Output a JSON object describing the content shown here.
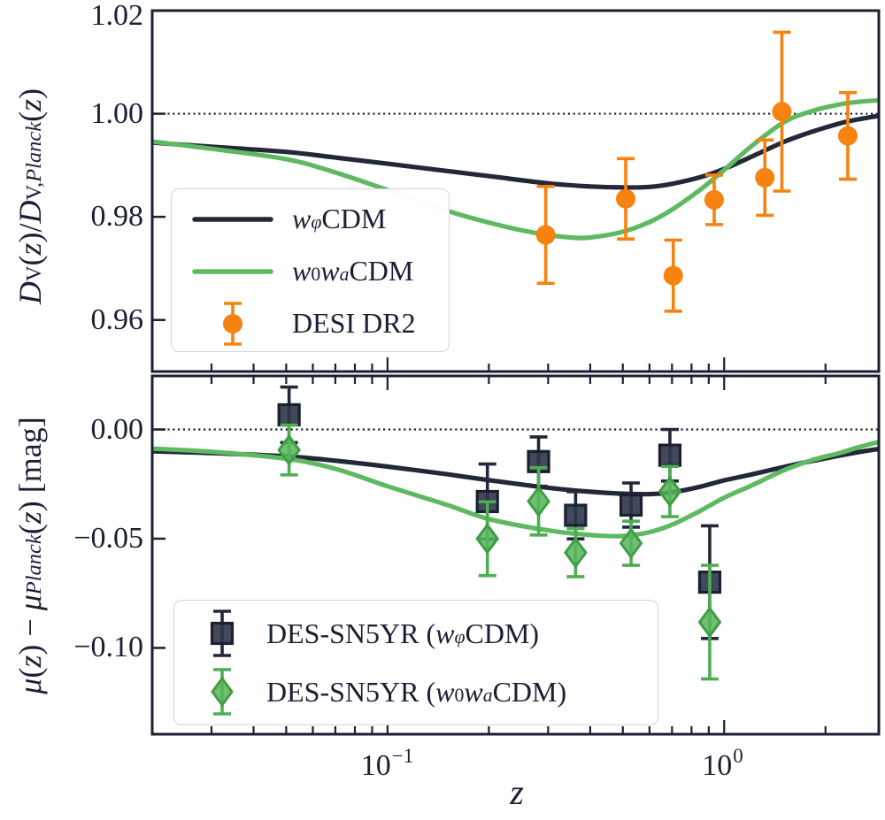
{
  "colors": {
    "navy": "#232839",
    "navy_fill": "#2e3547",
    "navy_edge": "#1a2032",
    "green": "#5fb961",
    "green_fill": "#57b55c",
    "green_edge": "#3f9e45",
    "green_err": "#4fae54",
    "orange": "#f6820f",
    "frame": "#1a2032",
    "text": "#1a1f33",
    "legend_border": "#d4d4d4",
    "reference_dotted": "#1a1f33"
  },
  "labels": {
    "xlabel": "z",
    "yticks_top": {
      "t0": "1.02",
      "t1": "1.00",
      "t2": "0.98",
      "t3": "0.96"
    },
    "yticks_bottom": {
      "t0": "0.00",
      "t1": "−0.05",
      "t2": "−0.10"
    },
    "xtick1": {
      "base": "10",
      "exp": "−1"
    },
    "xtick2": {
      "base": "10",
      "exp": "0"
    },
    "ylabel_top": {
      "p0": "D",
      "p1": "V",
      "p2": "(",
      "p3": "z",
      "p4": ")/",
      "p5": "D",
      "p6": "V,",
      "p7": "Planck",
      "p8": "(",
      "p9": "z",
      "p10": ")"
    },
    "ylabel_bottom": {
      "p0": "μ",
      "p1": "(",
      "p2": "z",
      "p3": ") − ",
      "p4": "μ",
      "p5": "Planck",
      "p6": "(",
      "p7": "z",
      "p8": ") [mag]"
    }
  },
  "legend_top": {
    "e0": {
      "w": "w",
      "sub": "φ",
      "rest": "CDM"
    },
    "e1": {
      "w1": "w",
      "sub1": "0",
      "w2": "w",
      "sub2": "a",
      "rest": "CDM"
    },
    "e2": {
      "label": "DESI DR2"
    }
  },
  "legend_bottom": {
    "e0": {
      "pre": "DES-SN5YR (",
      "w": "w",
      "sub": "φ",
      "post": "CDM)"
    },
    "e1": {
      "pre": "DES-SN5YR (",
      "w1": "w",
      "sub1": "0",
      "w2": "w",
      "sub2": "a",
      "post": "CDM)"
    }
  },
  "chart_data": {
    "type": "line",
    "xscale": "log",
    "xlabel": "z",
    "xlim": [
      0.02,
      2.88
    ],
    "x_major_ticks": [
      0.1,
      1.0
    ],
    "x_minor_ticks": [
      0.02,
      0.03,
      0.04,
      0.05,
      0.06,
      0.07,
      0.08,
      0.09,
      0.2,
      0.3,
      0.4,
      0.5,
      0.6,
      0.7,
      0.8,
      0.9,
      2.0
    ],
    "panels": [
      {
        "id": "top",
        "ylabel": "DV(z)/DV,Planck(z)",
        "ylim": [
          0.95,
          1.02
        ],
        "yticks": [
          1.02,
          1.0,
          0.98,
          0.96
        ],
        "reference_line_y": 1.0,
        "curves": [
          {
            "name": "wφCDM",
            "color_key": "navy",
            "points": [
              [
                0.02,
                0.9944
              ],
              [
                0.03,
                0.9936
              ],
              [
                0.05,
                0.9926
              ],
              [
                0.07,
                0.9915
              ],
              [
                0.1,
                0.9903
              ],
              [
                0.15,
                0.9889
              ],
              [
                0.2,
                0.9879
              ],
              [
                0.3,
                0.9865
              ],
              [
                0.4,
                0.9859
              ],
              [
                0.5,
                0.9857
              ],
              [
                0.6,
                0.9858
              ],
              [
                0.7,
                0.9864
              ],
              [
                0.85,
                0.9877
              ],
              [
                1.0,
                0.9893
              ],
              [
                1.2,
                0.9916
              ],
              [
                1.5,
                0.9945
              ],
              [
                1.8,
                0.9964
              ],
              [
                2.2,
                0.9981
              ],
              [
                2.5,
                0.9989
              ],
              [
                2.88,
                0.9996
              ]
            ]
          },
          {
            "name": "w0waCDM",
            "color_key": "green",
            "points": [
              [
                0.02,
                0.9946
              ],
              [
                0.03,
                0.9932
              ],
              [
                0.05,
                0.9912
              ],
              [
                0.07,
                0.9886
              ],
              [
                0.1,
                0.9852
              ],
              [
                0.15,
                0.9812
              ],
              [
                0.2,
                0.9789
              ],
              [
                0.25,
                0.9774
              ],
              [
                0.3,
                0.9765
              ],
              [
                0.35,
                0.976
              ],
              [
                0.4,
                0.976
              ],
              [
                0.5,
                0.9771
              ],
              [
                0.6,
                0.979
              ],
              [
                0.7,
                0.9814
              ],
              [
                0.85,
                0.9853
              ],
              [
                1.0,
                0.9891
              ],
              [
                1.2,
                0.9936
              ],
              [
                1.5,
                0.9983
              ],
              [
                1.8,
                1.0004
              ],
              [
                2.2,
                1.0018
              ],
              [
                2.5,
                1.0023
              ],
              [
                2.88,
                1.0026
              ]
            ]
          }
        ],
        "errorbars": [
          {
            "name": "DESI DR2",
            "marker": "circle",
            "color_key": "orange",
            "points": [
              {
                "z": 0.295,
                "y": 0.9765,
                "err": 0.0094
              },
              {
                "z": 0.51,
                "y": 0.9835,
                "err": 0.0078
              },
              {
                "z": 0.706,
                "y": 0.9686,
                "err": 0.0069
              },
              {
                "z": 0.934,
                "y": 0.9833,
                "err": 0.0048
              },
              {
                "z": 1.321,
                "y": 0.9876,
                "err": 0.0073
              },
              {
                "z": 1.484,
                "y": 1.0004,
                "err": 0.0154
              },
              {
                "z": 2.33,
                "y": 0.9957,
                "err": 0.0084
              }
            ]
          }
        ]
      },
      {
        "id": "bottom",
        "ylabel": "μ(z) − μPlanck(z) [mag]",
        "ylim": [
          -0.1395,
          0.0245
        ],
        "yticks": [
          0.0,
          -0.05,
          -0.1
        ],
        "reference_line_y": 0.0,
        "curves": [
          {
            "name": "wφCDM",
            "color_key": "navy",
            "points": [
              [
                0.02,
                -0.01
              ],
              [
                0.03,
                -0.0108
              ],
              [
                0.05,
                -0.0123
              ],
              [
                0.07,
                -0.0143
              ],
              [
                0.1,
                -0.017
              ],
              [
                0.15,
                -0.0205
              ],
              [
                0.2,
                -0.0232
              ],
              [
                0.3,
                -0.0267
              ],
              [
                0.4,
                -0.0285
              ],
              [
                0.5,
                -0.0294
              ],
              [
                0.6,
                -0.0296
              ],
              [
                0.7,
                -0.0288
              ],
              [
                0.85,
                -0.0262
              ],
              [
                1.0,
                -0.0233
              ],
              [
                1.2,
                -0.0207
              ],
              [
                1.5,
                -0.0172
              ],
              [
                1.8,
                -0.0146
              ],
              [
                2.2,
                -0.012
              ],
              [
                2.5,
                -0.0104
              ],
              [
                2.88,
                -0.0089
              ]
            ]
          },
          {
            "name": "w0waCDM",
            "color_key": "green",
            "points": [
              [
                0.02,
                -0.0088
              ],
              [
                0.03,
                -0.0102
              ],
              [
                0.05,
                -0.0134
              ],
              [
                0.07,
                -0.018
              ],
              [
                0.1,
                -0.026
              ],
              [
                0.15,
                -0.0345
              ],
              [
                0.2,
                -0.041
              ],
              [
                0.3,
                -0.0462
              ],
              [
                0.4,
                -0.0483
              ],
              [
                0.5,
                -0.0488
              ],
              [
                0.6,
                -0.047
              ],
              [
                0.7,
                -0.0436
              ],
              [
                0.85,
                -0.0372
              ],
              [
                1.0,
                -0.0312
              ],
              [
                1.2,
                -0.0258
              ],
              [
                1.5,
                -0.0188
              ],
              [
                1.8,
                -0.0143
              ],
              [
                2.2,
                -0.0108
              ],
              [
                2.5,
                -0.0082
              ],
              [
                2.88,
                -0.0057
              ]
            ]
          }
        ],
        "errorbars": [
          {
            "name": "DES-SN5YR (wφCDM)",
            "marker": "square",
            "color_key": "navy",
            "points": [
              {
                "z": 0.051,
                "y": 0.0067,
                "err": 0.0127
              },
              {
                "z": 0.198,
                "y": -0.033,
                "err": 0.0172
              },
              {
                "z": 0.281,
                "y": -0.0147,
                "err": 0.0113
              },
              {
                "z": 0.362,
                "y": -0.0393,
                "err": 0.0108
              },
              {
                "z": 0.529,
                "y": -0.0346,
                "err": 0.0101
              },
              {
                "z": 0.69,
                "y": -0.0118,
                "err": 0.0118
              },
              {
                "z": 0.906,
                "y": -0.0699,
                "err": 0.0258
              }
            ]
          },
          {
            "name": "DES-SN5YR (w0waCDM)",
            "marker": "diamond",
            "color_key": "green_err",
            "points": [
              {
                "z": 0.051,
                "y": -0.0094,
                "err": 0.0114
              },
              {
                "z": 0.198,
                "y": -0.05,
                "err": 0.0169
              },
              {
                "z": 0.281,
                "y": -0.0329,
                "err": 0.0154
              },
              {
                "z": 0.362,
                "y": -0.0564,
                "err": 0.011
              },
              {
                "z": 0.529,
                "y": -0.0521,
                "err": 0.0101
              },
              {
                "z": 0.69,
                "y": -0.0284,
                "err": 0.0115
              },
              {
                "z": 0.906,
                "y": -0.0882,
                "err": 0.026
              }
            ]
          }
        ]
      }
    ]
  }
}
